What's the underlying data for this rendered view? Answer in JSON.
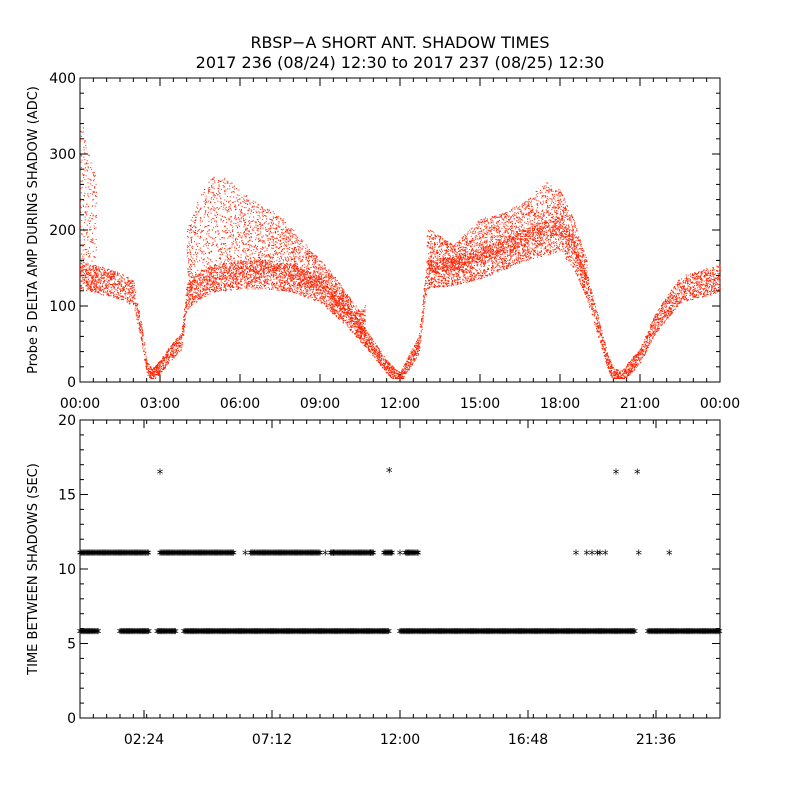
{
  "title_line1": "RBSP−A SHORT ANT. SHADOW TIMES",
  "title_line2": "2017 236 (08/24) 12:30 to 2017 237 (08/25) 12:30",
  "colors": {
    "points": "#ff2200",
    "axis": "#000000"
  },
  "chart_data": [
    {
      "type": "scatter",
      "ylabel": "Probe 5 DELTA AMP DURING SHADOW (ADC)",
      "xlabel": "",
      "x_units": "hours",
      "xlim": [
        0,
        24
      ],
      "ylim": [
        0,
        400
      ],
      "x_tick_labels": [
        "00:00",
        "03:00",
        "06:00",
        "09:00",
        "12:00",
        "15:00",
        "18:00",
        "21:00",
        "00:00"
      ],
      "y_tick_labels": [
        "0",
        "100",
        "200",
        "300",
        "400"
      ],
      "marker_color": "#ff2200",
      "series": [
        {
          "name": "",
          "description_points": {
            "x": [
              0.0,
              0.5,
              1.0,
              1.5,
              2.0,
              2.3,
              2.5,
              2.7,
              3.0,
              3.3,
              3.8,
              4.0,
              4.5,
              5.0,
              6.0,
              7.0,
              8.0,
              9.0,
              10.0,
              11.0,
              11.5,
              11.8,
              12.0,
              12.3,
              12.7,
              13.0,
              14.0,
              15.0,
              16.0,
              17.0,
              18.0,
              18.5,
              19.0,
              19.5,
              19.8,
              20.0,
              20.3,
              21.0,
              21.5,
              22.0,
              22.5,
              23.0,
              24.0
            ],
            "y": [
              140,
              135,
              130,
              125,
              115,
              60,
              15,
              5,
              15,
              30,
              50,
              110,
              125,
              135,
              140,
              140,
              135,
              120,
              85,
              40,
              15,
              5,
              0,
              20,
              45,
              140,
              145,
              155,
              170,
              185,
              195,
              170,
              125,
              60,
              20,
              5,
              2,
              30,
              70,
              95,
              120,
              125,
              135
            ]
          },
          "upper_branch": {
            "x": [
              0.0,
              0.2,
              0.5,
              4.0,
              4.5,
              5.0,
              5.5,
              6.5,
              7.5,
              8.5,
              9.5,
              10.5,
              13.0,
              14.0,
              15.0,
              16.0,
              17.0,
              17.5,
              18.0,
              18.5,
              19.0
            ],
            "y": [
              360,
              320,
              280,
              200,
              250,
              275,
              270,
              240,
              220,
              180,
              140,
              90,
              205,
              180,
              215,
              225,
              250,
              265,
              255,
              215,
              160
            ]
          }
        }
      ]
    },
    {
      "type": "scatter",
      "ylabel": "TIME BETWEEN SHADOWS (SEC)",
      "xlabel": "",
      "x_units": "hours",
      "xlim": [
        0,
        24
      ],
      "ylim": [
        0,
        20
      ],
      "x_tick_labels": [
        "02:24",
        "07:12",
        "12:00",
        "16:48",
        "21:36"
      ],
      "y_tick_labels": [
        "0",
        "5",
        "10",
        "15",
        "20"
      ],
      "marker": "*",
      "marker_color": "#000000",
      "levels": [
        {
          "y": 5.6,
          "x_ranges": [
            [
              0.0,
              0.7
            ],
            [
              1.5,
              2.6
            ],
            [
              2.9,
              3.6
            ],
            [
              3.9,
              11.6
            ],
            [
              12.0,
              20.8
            ],
            [
              21.3,
              24.0
            ]
          ]
        },
        {
          "y": 11.0,
          "x_ranges": [
            [
              0.0,
              2.6
            ],
            [
              3.0,
              5.8
            ],
            [
              6.4,
              9.0
            ],
            [
              9.4,
              11.0
            ],
            [
              11.4,
              11.7
            ],
            [
              12.2,
              12.7
            ]
          ]
        }
      ],
      "isolated_points": {
        "x": [
          3.0,
          11.6,
          11.7,
          9.2,
          9.5,
          10.9,
          6.2,
          12.0,
          12.3,
          18.6,
          19.0,
          19.2,
          19.4,
          19.5,
          19.7,
          20.1,
          20.9,
          20.95,
          22.1
        ],
        "y": [
          16.6,
          16.7,
          11.0,
          11.0,
          11.0,
          11.0,
          11.0,
          11.0,
          11.0,
          11.0,
          11.0,
          11.0,
          11.0,
          11.0,
          11.0,
          16.6,
          16.6,
          11.0,
          11.0
        ]
      }
    }
  ]
}
